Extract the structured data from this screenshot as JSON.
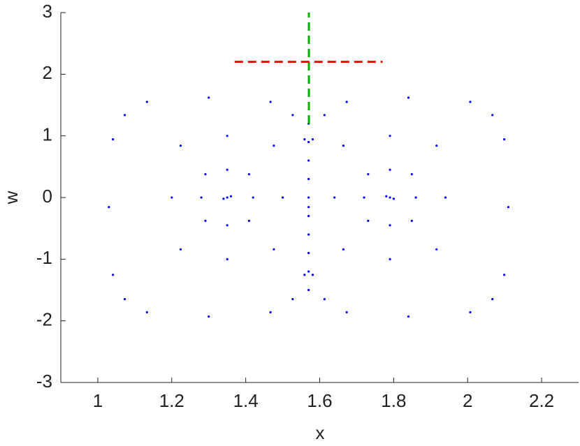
{
  "chart_data": {
    "type": "scatter",
    "xlabel": "x",
    "ylabel": "w",
    "xlim": [
      0.9,
      2.3
    ],
    "ylim": [
      -3,
      3
    ],
    "xticks": [
      1,
      1.2,
      1.4,
      1.6,
      1.8,
      2,
      2.2
    ],
    "yticks": [
      -3,
      -2,
      -1,
      0,
      1,
      2,
      3
    ],
    "series": [
      {
        "color": "#0000ff",
        "x": [
          1.57,
          1.559,
          1.527,
          1.467,
          1.3,
          1.133,
          1.073,
          1.041,
          1.03,
          1.041,
          1.073,
          1.133,
          1.3,
          1.467,
          1.527,
          1.559,
          1.581,
          1.613,
          1.673,
          1.84,
          2.007,
          2.067,
          2.099,
          2.11,
          2.099,
          2.067,
          2.007,
          1.84,
          1.673,
          1.613,
          1.581,
          1.5,
          1.476,
          1.35,
          1.224,
          1.2,
          1.224,
          1.35,
          1.476,
          1.42,
          1.409,
          1.35,
          1.291,
          1.28,
          1.291,
          1.35,
          1.409,
          1.35,
          1.36,
          1.34,
          1.64,
          1.664,
          1.79,
          1.916,
          1.94,
          1.916,
          1.79,
          1.664,
          1.72,
          1.731,
          1.79,
          1.849,
          1.86,
          1.849,
          1.79,
          1.731,
          1.79,
          1.78,
          1.8,
          1.57,
          1.57,
          1.57,
          1.57,
          1.57,
          1.57,
          1.57,
          1.57,
          1.57,
          1.57
        ],
        "y": [
          -0.155,
          0.944,
          1.338,
          1.551,
          1.62,
          1.551,
          1.338,
          0.944,
          -0.155,
          -1.254,
          -1.648,
          -1.861,
          -1.93,
          -1.861,
          -1.648,
          -1.254,
          0.944,
          1.338,
          1.551,
          1.62,
          1.551,
          1.338,
          0.944,
          -0.155,
          -1.254,
          -1.648,
          -1.861,
          -1.93,
          -1.861,
          -1.648,
          -1.254,
          0,
          0.841,
          1.0,
          0.841,
          0,
          -0.841,
          -1.0,
          -0.841,
          0,
          0.378,
          0.45,
          0.378,
          0,
          -0.378,
          -0.45,
          -0.378,
          0,
          0.02,
          -0.02,
          0,
          0.841,
          1.0,
          0.841,
          0,
          -0.841,
          -1.0,
          -0.841,
          0,
          0.378,
          0.45,
          0.378,
          0,
          -0.378,
          -0.45,
          -0.378,
          0,
          0.02,
          -0.02,
          1.2,
          0.9,
          0.6,
          0.3,
          0,
          -0.3,
          -0.6,
          -0.9,
          -1.2,
          -1.5
        ]
      }
    ],
    "lines": [
      {
        "color": "#00b000",
        "x": [
          1.5708,
          1.5708
        ],
        "y": [
          1.2,
          3
        ]
      },
      {
        "color": "#ff0000",
        "x": [
          1.37,
          1.77
        ],
        "y": [
          2.2,
          2.2
        ]
      }
    ]
  }
}
